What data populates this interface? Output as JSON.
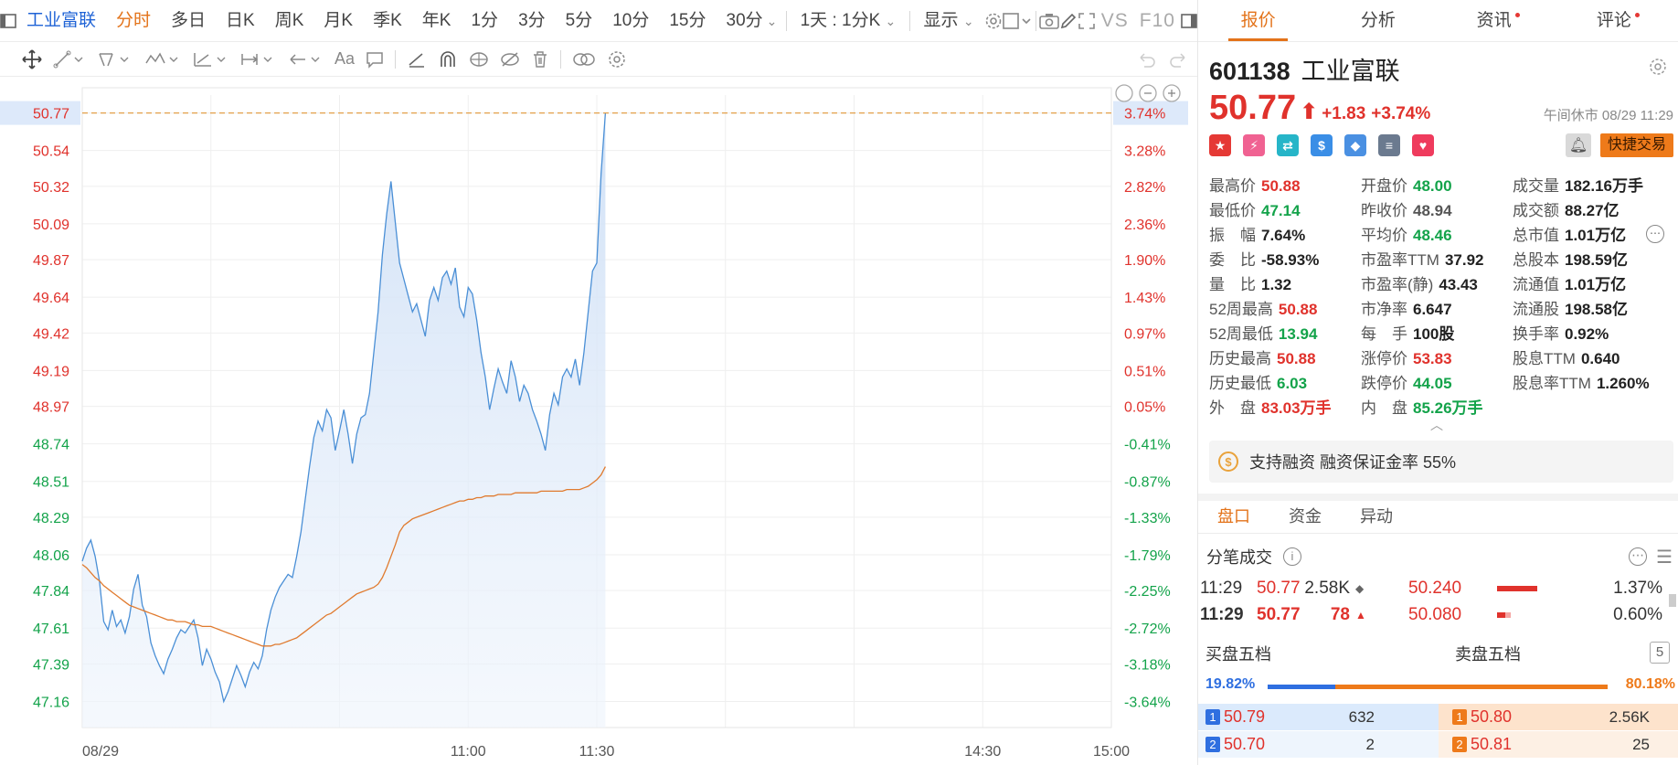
{
  "toolbar": {
    "stock_name": "工业富联",
    "tabs": [
      "分时",
      "多日",
      "日K",
      "周K",
      "月K",
      "季K",
      "年K",
      "1分",
      "3分",
      "5分",
      "10分",
      "15分",
      "30分"
    ],
    "interval_select": "1天 : 1分K",
    "display_menu": "显示",
    "compare_label": "VS",
    "f10_label": "F10"
  },
  "chart": {
    "price_ticks": [
      "50.77",
      "50.54",
      "50.32",
      "50.09",
      "49.87",
      "49.64",
      "49.42",
      "49.19",
      "48.97",
      "48.74",
      "48.51",
      "48.29",
      "48.06",
      "47.84",
      "47.61",
      "47.39",
      "47.16"
    ],
    "pct_ticks": [
      "3.74%",
      "3.28%",
      "2.82%",
      "2.36%",
      "1.90%",
      "1.43%",
      "0.97%",
      "0.51%",
      "0.05%",
      "-0.41%",
      "-0.87%",
      "-1.33%",
      "-1.79%",
      "-2.25%",
      "-2.72%",
      "-3.18%",
      "-3.64%"
    ],
    "time_labels": [
      "08/29",
      "11:00",
      "11:30",
      "14:30",
      "15:00"
    ],
    "colors": {
      "up": "#e0322c",
      "down": "#13a34a",
      "price_line": "#4a8fd6",
      "avg_line": "#e07a2e",
      "ref_line": "#e3a04a"
    }
  },
  "chart_data": {
    "type": "line",
    "title": "",
    "xlabel": "",
    "ylabel": "",
    "ylim": [
      47.0,
      50.9
    ],
    "x_range": [
      "09:30",
      "15:00"
    ],
    "series": [
      {
        "values": [
          48.02,
          48.1,
          48.15,
          48.05,
          47.9,
          47.65,
          47.6,
          47.72,
          47.62,
          47.66,
          47.58,
          47.68,
          47.85,
          47.94,
          47.75,
          47.68,
          47.52,
          47.44,
          47.38,
          47.33,
          47.42,
          47.48,
          47.55,
          47.6,
          47.58,
          47.62,
          47.66,
          47.55,
          47.38,
          47.48,
          47.42,
          47.34,
          47.28,
          47.16,
          47.22,
          47.3,
          47.38,
          47.32,
          47.25,
          47.34,
          47.4,
          47.36,
          47.44,
          47.6,
          47.72,
          47.8,
          47.86,
          47.9,
          47.94,
          47.92,
          48.05,
          48.2,
          48.4,
          48.6,
          48.78,
          48.88,
          48.82,
          48.95,
          48.9,
          48.7,
          48.82,
          48.95,
          48.8,
          48.62,
          48.8,
          48.9,
          48.92,
          49.05,
          49.3,
          49.55,
          49.9,
          50.15,
          50.35,
          50.1,
          49.85,
          49.75,
          49.65,
          49.55,
          49.6,
          49.5,
          49.4,
          49.62,
          49.7,
          49.62,
          49.76,
          49.8,
          49.72,
          49.82,
          49.58,
          49.52,
          49.7,
          49.66,
          49.5,
          49.3,
          49.15,
          48.95,
          49.08,
          49.2,
          49.12,
          49.05,
          49.25,
          49.15,
          49.0,
          49.1,
          49.05,
          48.95,
          48.88,
          48.8,
          48.7,
          48.92,
          49.05,
          48.98,
          49.15,
          49.2,
          49.15,
          49.26,
          49.1,
          49.3,
          49.55,
          49.8,
          49.85,
          50.4,
          50.77
        ]
      },
      {
        "values": [
          48.0,
          47.98,
          47.95,
          47.92,
          47.9,
          47.87,
          47.85,
          47.83,
          47.81,
          47.79,
          47.77,
          47.75,
          47.74,
          47.73,
          47.72,
          47.71,
          47.7,
          47.69,
          47.68,
          47.67,
          47.66,
          47.66,
          47.65,
          47.65,
          47.65,
          47.64,
          47.63,
          47.63,
          47.62,
          47.62,
          47.62,
          47.61,
          47.6,
          47.59,
          47.58,
          47.57,
          47.56,
          47.55,
          47.54,
          47.53,
          47.52,
          47.51,
          47.5,
          47.5,
          47.5,
          47.51,
          47.51,
          47.52,
          47.53,
          47.54,
          47.55,
          47.57,
          47.59,
          47.61,
          47.63,
          47.65,
          47.67,
          47.69,
          47.7,
          47.72,
          47.74,
          47.76,
          47.78,
          47.8,
          47.82,
          47.83,
          47.84,
          47.85,
          47.86,
          47.88,
          47.92,
          47.98,
          48.05,
          48.12,
          48.2,
          48.24,
          48.26,
          48.28,
          48.29,
          48.3,
          48.31,
          48.32,
          48.33,
          48.34,
          48.35,
          48.36,
          48.37,
          48.38,
          48.39,
          48.39,
          48.4,
          48.4,
          48.41,
          48.41,
          48.42,
          48.42,
          48.42,
          48.43,
          48.43,
          48.43,
          48.43,
          48.44,
          48.44,
          48.44,
          48.44,
          48.44,
          48.44,
          48.45,
          48.45,
          48.45,
          48.45,
          48.45,
          48.45,
          48.46,
          48.46,
          48.46,
          48.46,
          48.47,
          48.48,
          48.5,
          48.52,
          48.55,
          48.6
        ]
      }
    ],
    "reference_price": 50.77,
    "prev_close": 48.94
  },
  "panel": {
    "tabs": [
      {
        "label": "报价",
        "dot": false
      },
      {
        "label": "分析",
        "dot": false
      },
      {
        "label": "资讯",
        "dot": true
      },
      {
        "label": "评论",
        "dot": true
      }
    ],
    "code": "601138",
    "name": "工业富联",
    "price": "50.77",
    "arrow": "⬆",
    "change": "+1.83",
    "change_pct": "+3.74%",
    "status_time": "午间休市 08/29 11:29",
    "badges": [
      {
        "name": "flag",
        "color": "#e53935",
        "glyph": "★"
      },
      {
        "name": "flash",
        "color": "#f06292",
        "glyph": "⚡"
      },
      {
        "name": "shuffle",
        "color": "#26b5c8",
        "glyph": "⇄"
      },
      {
        "name": "dollar",
        "color": "#3a8ee6",
        "glyph": "$"
      },
      {
        "name": "tag",
        "color": "#4a90e2",
        "glyph": "◆"
      },
      {
        "name": "note",
        "color": "#6b7a8f",
        "glyph": "≡"
      },
      {
        "name": "heart",
        "color": "#ef3b5d",
        "glyph": "♥"
      }
    ],
    "quick_trade": "快捷交易",
    "stats": [
      {
        "label": "最高价",
        "value": "50.88",
        "color": "red"
      },
      {
        "label": "开盘价",
        "value": "48.00",
        "color": "green"
      },
      {
        "label": "成交量",
        "value": "182.16万手",
        "color": "black"
      },
      {
        "label": "最低价",
        "value": "47.14",
        "color": "green"
      },
      {
        "label": "昨收价",
        "value": "48.94",
        "color": "gray"
      },
      {
        "label": "成交额",
        "value": "88.27亿",
        "color": "black"
      },
      {
        "label": "振　幅",
        "value": "7.64%",
        "color": "black"
      },
      {
        "label": "平均价",
        "value": "48.46",
        "color": "green"
      },
      {
        "label": "总市值",
        "value": "1.01万亿",
        "color": "black"
      },
      {
        "label": "委　比",
        "value": "-58.93%",
        "color": "black"
      },
      {
        "label": "市盈率TTM",
        "value": "37.92",
        "color": "black"
      },
      {
        "label": "总股本",
        "value": "198.59亿",
        "color": "black"
      },
      {
        "label": "量　比",
        "value": "1.32",
        "color": "black"
      },
      {
        "label": "市盈率(静)",
        "value": "43.43",
        "color": "black"
      },
      {
        "label": "流通值",
        "value": "1.01万亿",
        "color": "black"
      },
      {
        "label": "52周最高",
        "value": "50.88",
        "color": "red"
      },
      {
        "label": "市净率",
        "value": "6.647",
        "color": "black"
      },
      {
        "label": "流通股",
        "value": "198.58亿",
        "color": "black"
      },
      {
        "label": "52周最低",
        "value": "13.94",
        "color": "green"
      },
      {
        "label": "每　手",
        "value": "100股",
        "color": "black"
      },
      {
        "label": "换手率",
        "value": "0.92%",
        "color": "black"
      },
      {
        "label": "历史最高",
        "value": "50.88",
        "color": "red"
      },
      {
        "label": "涨停价",
        "value": "53.83",
        "color": "red"
      },
      {
        "label": "股息TTM",
        "value": "0.640",
        "color": "black"
      },
      {
        "label": "历史最低",
        "value": "6.03",
        "color": "green"
      },
      {
        "label": "跌停价",
        "value": "44.05",
        "color": "green"
      },
      {
        "label": "股息率TTM",
        "value": "1.260%",
        "color": "black"
      },
      {
        "label": "外　盘",
        "value": "83.03万手",
        "color": "red"
      },
      {
        "label": "内　盘",
        "value": "85.26万手",
        "color": "green"
      }
    ],
    "margin_text": "支持融资 融资保证金率 55%",
    "sub_tabs": [
      "盘口",
      "资金",
      "异动"
    ],
    "ticks_title": "分笔成交",
    "ticks": [
      {
        "time": "11:29",
        "price": "50.77",
        "vol": "2.58K",
        "mark": "◆",
        "mark_color": "#666",
        "ref": "50.240",
        "bar": 1.0,
        "pct": "1.37%"
      },
      {
        "time": "11:29",
        "price": "50.77",
        "vol": "78",
        "mark": "▲",
        "mark_color": "#e0322c",
        "ref": "50.080",
        "bar": 0.35,
        "pct": "0.60%"
      }
    ],
    "buy_title": "买盘五档",
    "sell_title": "卖盘五档",
    "levels_button": "5",
    "buy_ratio": "19.82%",
    "sell_ratio": "80.18%",
    "buy_ratio_value": 0.1982,
    "book": [
      {
        "bi": "1",
        "bp": "50.79",
        "bv": "632",
        "si": "1",
        "sp": "50.80",
        "sv": "2.56K"
      },
      {
        "bi": "2",
        "bp": "50.70",
        "bv": "2",
        "si": "2",
        "sp": "50.81",
        "sv": "25"
      }
    ]
  }
}
